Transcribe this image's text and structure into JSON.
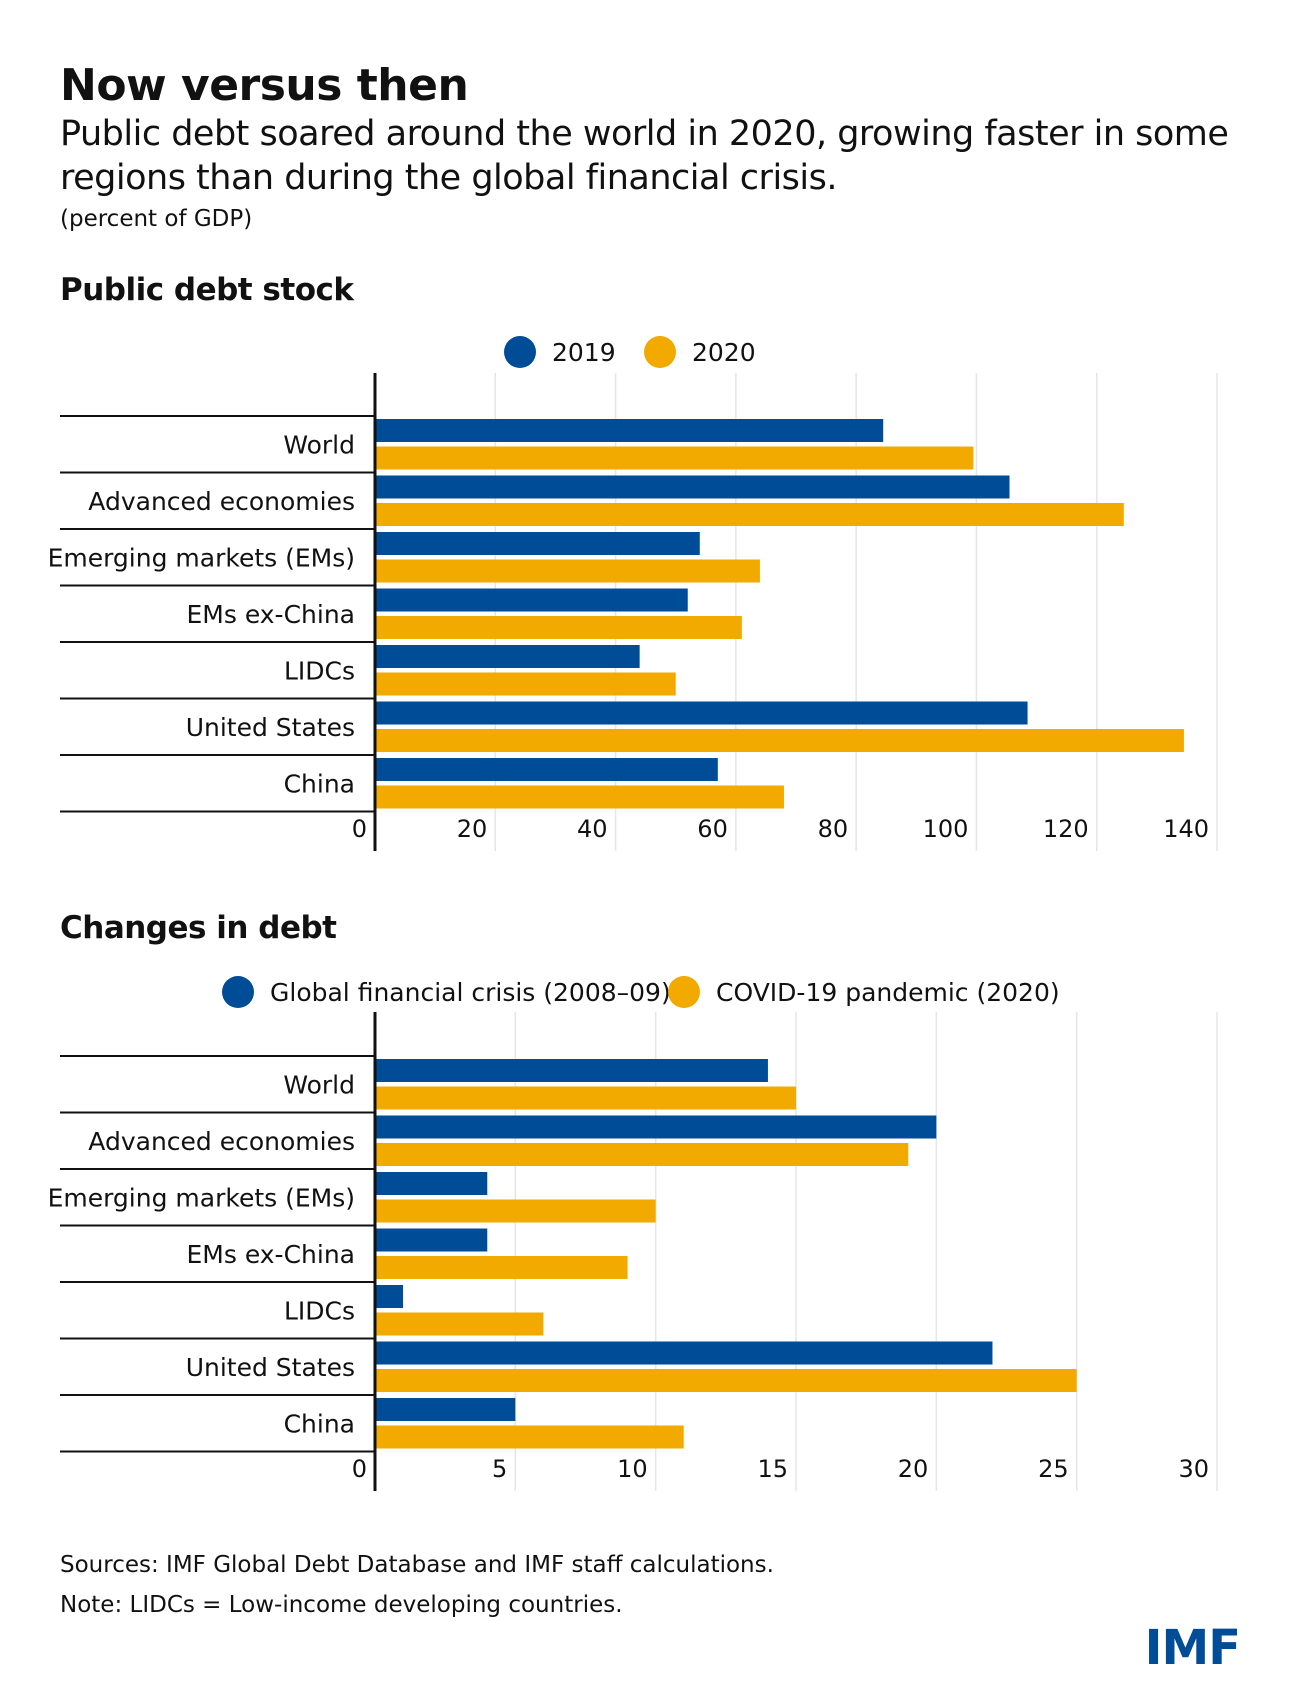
{
  "title": "Now versus then",
  "subtitle": "Public debt soared around the world in 2020, growing faster in some regions than during the global financial crisis.",
  "unit": "(percent of GDP)",
  "colors": {
    "blue": "#004c97",
    "gold": "#f2a900",
    "grid": "#e6e6e6"
  },
  "chart_data": [
    {
      "type": "bar",
      "orientation": "horizontal",
      "title": "Public debt stock",
      "categories": [
        "World",
        "Advanced economies",
        "Emerging markets (EMs)",
        "EMs ex-China",
        "LIDCs",
        "United States",
        "China"
      ],
      "series": [
        {
          "name": "2019",
          "values": [
            84.5,
            105.5,
            54,
            52,
            44,
            108.5,
            57
          ]
        },
        {
          "name": "2020",
          "values": [
            99.5,
            124.5,
            64,
            61,
            50,
            134.5,
            68
          ]
        }
      ],
      "xlim": [
        0,
        140
      ],
      "ticks": [
        0,
        20,
        40,
        60,
        80,
        100,
        120,
        140
      ],
      "grid": true,
      "legend": "top-center"
    },
    {
      "type": "bar",
      "orientation": "horizontal",
      "title": "Changes in debt",
      "categories": [
        "World",
        "Advanced economies",
        "Emerging markets (EMs)",
        "EMs ex-China",
        "LIDCs",
        "United States",
        "China"
      ],
      "series": [
        {
          "name": "Global financial crisis (2008–09)",
          "values": [
            14,
            20,
            4,
            4,
            1,
            22,
            5
          ]
        },
        {
          "name": "COVID-19 pandemic (2020)",
          "values": [
            15,
            19,
            10,
            9,
            6,
            25,
            11
          ]
        }
      ],
      "xlim": [
        0,
        30
      ],
      "ticks": [
        0,
        5,
        10,
        15,
        20,
        25,
        30
      ],
      "grid": true,
      "legend": "top-center"
    }
  ],
  "footer": {
    "sources": "Sources: IMF Global Debt Database and IMF staff calculations.",
    "note": "Note: LIDCs = Low-income developing countries."
  },
  "logo": "IMF"
}
